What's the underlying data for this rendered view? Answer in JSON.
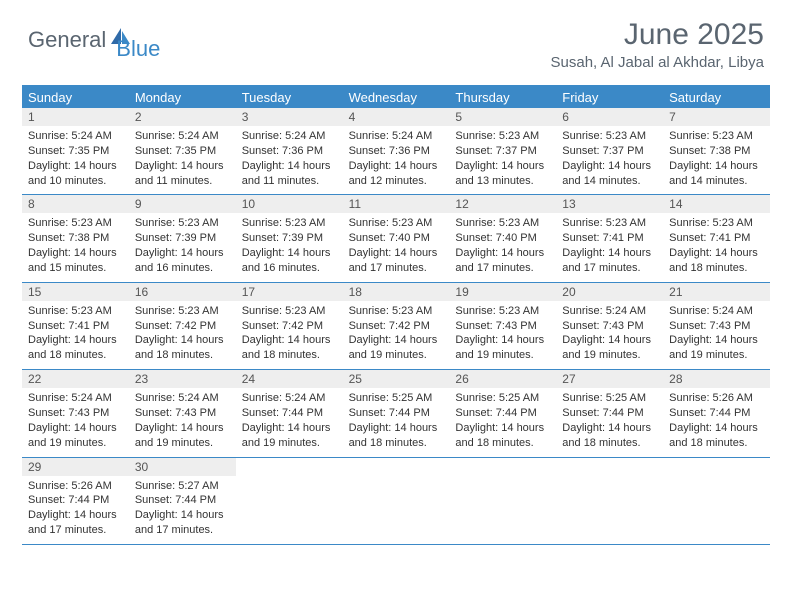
{
  "logo": {
    "text1": "General",
    "text2": "Blue"
  },
  "title": "June 2025",
  "location": "Susah, Al Jabal al Akhdar, Libya",
  "colors": {
    "brand": "#3b89c7",
    "header_text": "#5a6570",
    "day_num_bg": "#eeeeee",
    "body_text": "#333333",
    "bg": "#ffffff"
  },
  "fonts": {
    "title_pt": 30,
    "location_pt": 15,
    "dow_pt": 13,
    "daynum_pt": 12,
    "body_pt": 11
  },
  "days_of_week": [
    "Sunday",
    "Monday",
    "Tuesday",
    "Wednesday",
    "Thursday",
    "Friday",
    "Saturday"
  ],
  "weeks": [
    [
      {
        "n": "1",
        "sr": "Sunrise: 5:24 AM",
        "ss": "Sunset: 7:35 PM",
        "d1": "Daylight: 14 hours",
        "d2": "and 10 minutes."
      },
      {
        "n": "2",
        "sr": "Sunrise: 5:24 AM",
        "ss": "Sunset: 7:35 PM",
        "d1": "Daylight: 14 hours",
        "d2": "and 11 minutes."
      },
      {
        "n": "3",
        "sr": "Sunrise: 5:24 AM",
        "ss": "Sunset: 7:36 PM",
        "d1": "Daylight: 14 hours",
        "d2": "and 11 minutes."
      },
      {
        "n": "4",
        "sr": "Sunrise: 5:24 AM",
        "ss": "Sunset: 7:36 PM",
        "d1": "Daylight: 14 hours",
        "d2": "and 12 minutes."
      },
      {
        "n": "5",
        "sr": "Sunrise: 5:23 AM",
        "ss": "Sunset: 7:37 PM",
        "d1": "Daylight: 14 hours",
        "d2": "and 13 minutes."
      },
      {
        "n": "6",
        "sr": "Sunrise: 5:23 AM",
        "ss": "Sunset: 7:37 PM",
        "d1": "Daylight: 14 hours",
        "d2": "and 14 minutes."
      },
      {
        "n": "7",
        "sr": "Sunrise: 5:23 AM",
        "ss": "Sunset: 7:38 PM",
        "d1": "Daylight: 14 hours",
        "d2": "and 14 minutes."
      }
    ],
    [
      {
        "n": "8",
        "sr": "Sunrise: 5:23 AM",
        "ss": "Sunset: 7:38 PM",
        "d1": "Daylight: 14 hours",
        "d2": "and 15 minutes."
      },
      {
        "n": "9",
        "sr": "Sunrise: 5:23 AM",
        "ss": "Sunset: 7:39 PM",
        "d1": "Daylight: 14 hours",
        "d2": "and 16 minutes."
      },
      {
        "n": "10",
        "sr": "Sunrise: 5:23 AM",
        "ss": "Sunset: 7:39 PM",
        "d1": "Daylight: 14 hours",
        "d2": "and 16 minutes."
      },
      {
        "n": "11",
        "sr": "Sunrise: 5:23 AM",
        "ss": "Sunset: 7:40 PM",
        "d1": "Daylight: 14 hours",
        "d2": "and 17 minutes."
      },
      {
        "n": "12",
        "sr": "Sunrise: 5:23 AM",
        "ss": "Sunset: 7:40 PM",
        "d1": "Daylight: 14 hours",
        "d2": "and 17 minutes."
      },
      {
        "n": "13",
        "sr": "Sunrise: 5:23 AM",
        "ss": "Sunset: 7:41 PM",
        "d1": "Daylight: 14 hours",
        "d2": "and 17 minutes."
      },
      {
        "n": "14",
        "sr": "Sunrise: 5:23 AM",
        "ss": "Sunset: 7:41 PM",
        "d1": "Daylight: 14 hours",
        "d2": "and 18 minutes."
      }
    ],
    [
      {
        "n": "15",
        "sr": "Sunrise: 5:23 AM",
        "ss": "Sunset: 7:41 PM",
        "d1": "Daylight: 14 hours",
        "d2": "and 18 minutes."
      },
      {
        "n": "16",
        "sr": "Sunrise: 5:23 AM",
        "ss": "Sunset: 7:42 PM",
        "d1": "Daylight: 14 hours",
        "d2": "and 18 minutes."
      },
      {
        "n": "17",
        "sr": "Sunrise: 5:23 AM",
        "ss": "Sunset: 7:42 PM",
        "d1": "Daylight: 14 hours",
        "d2": "and 18 minutes."
      },
      {
        "n": "18",
        "sr": "Sunrise: 5:23 AM",
        "ss": "Sunset: 7:42 PM",
        "d1": "Daylight: 14 hours",
        "d2": "and 19 minutes."
      },
      {
        "n": "19",
        "sr": "Sunrise: 5:23 AM",
        "ss": "Sunset: 7:43 PM",
        "d1": "Daylight: 14 hours",
        "d2": "and 19 minutes."
      },
      {
        "n": "20",
        "sr": "Sunrise: 5:24 AM",
        "ss": "Sunset: 7:43 PM",
        "d1": "Daylight: 14 hours",
        "d2": "and 19 minutes."
      },
      {
        "n": "21",
        "sr": "Sunrise: 5:24 AM",
        "ss": "Sunset: 7:43 PM",
        "d1": "Daylight: 14 hours",
        "d2": "and 19 minutes."
      }
    ],
    [
      {
        "n": "22",
        "sr": "Sunrise: 5:24 AM",
        "ss": "Sunset: 7:43 PM",
        "d1": "Daylight: 14 hours",
        "d2": "and 19 minutes."
      },
      {
        "n": "23",
        "sr": "Sunrise: 5:24 AM",
        "ss": "Sunset: 7:43 PM",
        "d1": "Daylight: 14 hours",
        "d2": "and 19 minutes."
      },
      {
        "n": "24",
        "sr": "Sunrise: 5:24 AM",
        "ss": "Sunset: 7:44 PM",
        "d1": "Daylight: 14 hours",
        "d2": "and 19 minutes."
      },
      {
        "n": "25",
        "sr": "Sunrise: 5:25 AM",
        "ss": "Sunset: 7:44 PM",
        "d1": "Daylight: 14 hours",
        "d2": "and 18 minutes."
      },
      {
        "n": "26",
        "sr": "Sunrise: 5:25 AM",
        "ss": "Sunset: 7:44 PM",
        "d1": "Daylight: 14 hours",
        "d2": "and 18 minutes."
      },
      {
        "n": "27",
        "sr": "Sunrise: 5:25 AM",
        "ss": "Sunset: 7:44 PM",
        "d1": "Daylight: 14 hours",
        "d2": "and 18 minutes."
      },
      {
        "n": "28",
        "sr": "Sunrise: 5:26 AM",
        "ss": "Sunset: 7:44 PM",
        "d1": "Daylight: 14 hours",
        "d2": "and 18 minutes."
      }
    ],
    [
      {
        "n": "29",
        "sr": "Sunrise: 5:26 AM",
        "ss": "Sunset: 7:44 PM",
        "d1": "Daylight: 14 hours",
        "d2": "and 17 minutes."
      },
      {
        "n": "30",
        "sr": "Sunrise: 5:27 AM",
        "ss": "Sunset: 7:44 PM",
        "d1": "Daylight: 14 hours",
        "d2": "and 17 minutes."
      },
      {
        "empty": true
      },
      {
        "empty": true
      },
      {
        "empty": true
      },
      {
        "empty": true
      },
      {
        "empty": true
      }
    ]
  ]
}
